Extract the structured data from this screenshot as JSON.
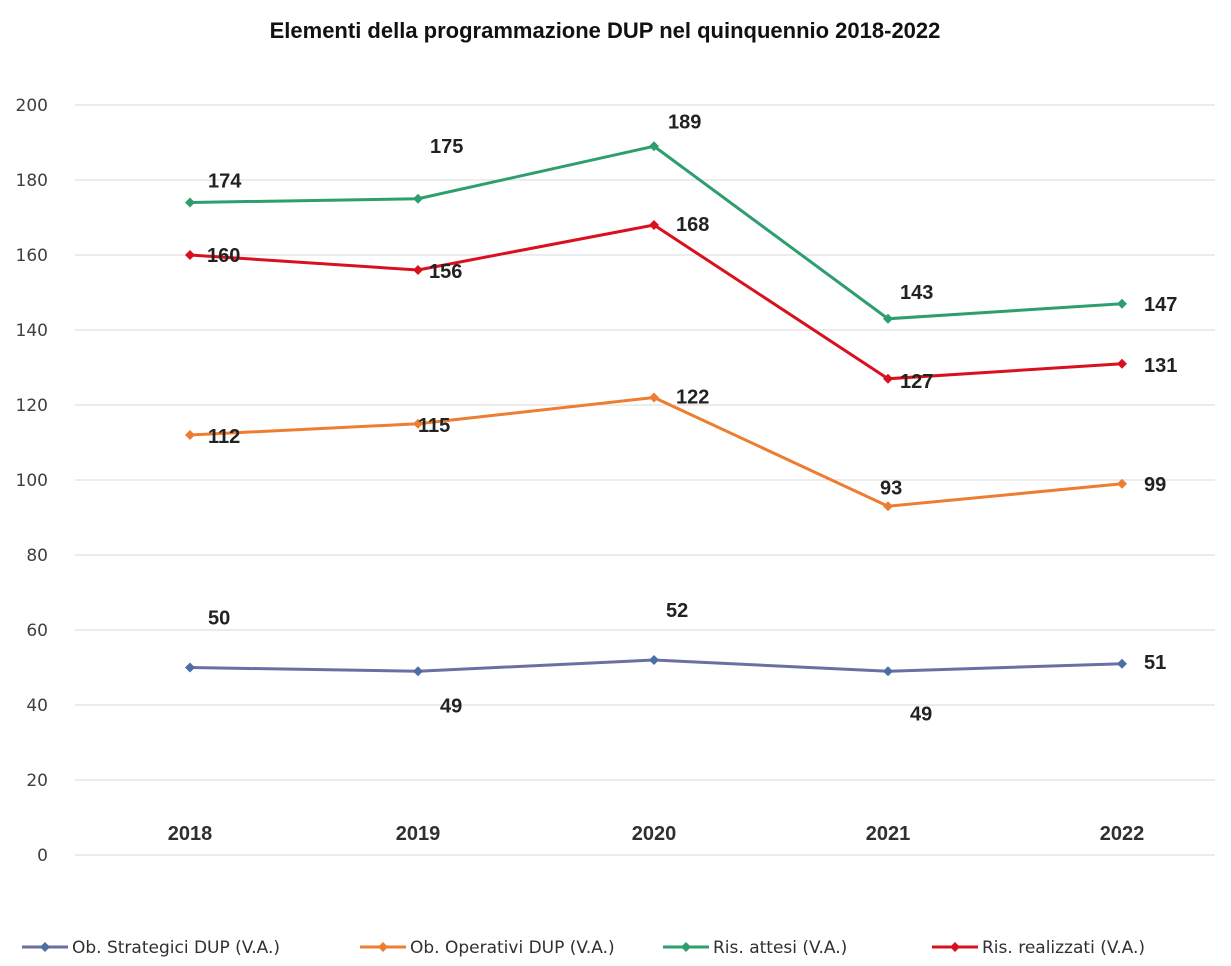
{
  "chart_data": {
    "type": "line",
    "title": "Elementi della programmazione DUP nel quinquennio 2018-2022",
    "categories": [
      "2018",
      "2019",
      "2020",
      "2021",
      "2022"
    ],
    "ylim": [
      0,
      200
    ],
    "yticks": [
      "0",
      "20",
      "40",
      "60",
      "80",
      "100",
      "120",
      "140",
      "160",
      "180",
      "200"
    ],
    "grid": true,
    "legend_position": "bottom",
    "series": [
      {
        "name": "Ob. Strategici DUP (V.A.)",
        "color": "#4a6fa5",
        "line_color": "#6b6fa3",
        "values": [
          50,
          49,
          52,
          49,
          51
        ],
        "labels": [
          "50",
          "49",
          "52",
          "49",
          "51"
        ]
      },
      {
        "name": "Ob. Operativi DUP (V.A.)",
        "color": "#ed7d31",
        "line_color": "#ed7d31",
        "values": [
          112,
          115,
          122,
          93,
          99
        ],
        "labels": [
          "112",
          "115",
          "122",
          "93",
          "99"
        ]
      },
      {
        "name": "Ris. attesi (V.A.)",
        "color": "#2e9e6e",
        "line_color": "#2e9e6e",
        "values": [
          174,
          175,
          189,
          143,
          147
        ],
        "labels": [
          "174",
          "175",
          "189",
          "143",
          "147"
        ]
      },
      {
        "name": "Ris. realizzati (V.A.)",
        "color": "#d9101e",
        "line_color": "#d9101e",
        "values": [
          160,
          156,
          168,
          127,
          131
        ],
        "labels": [
          "160",
          "156",
          "168",
          "127",
          "131"
        ]
      }
    ]
  }
}
